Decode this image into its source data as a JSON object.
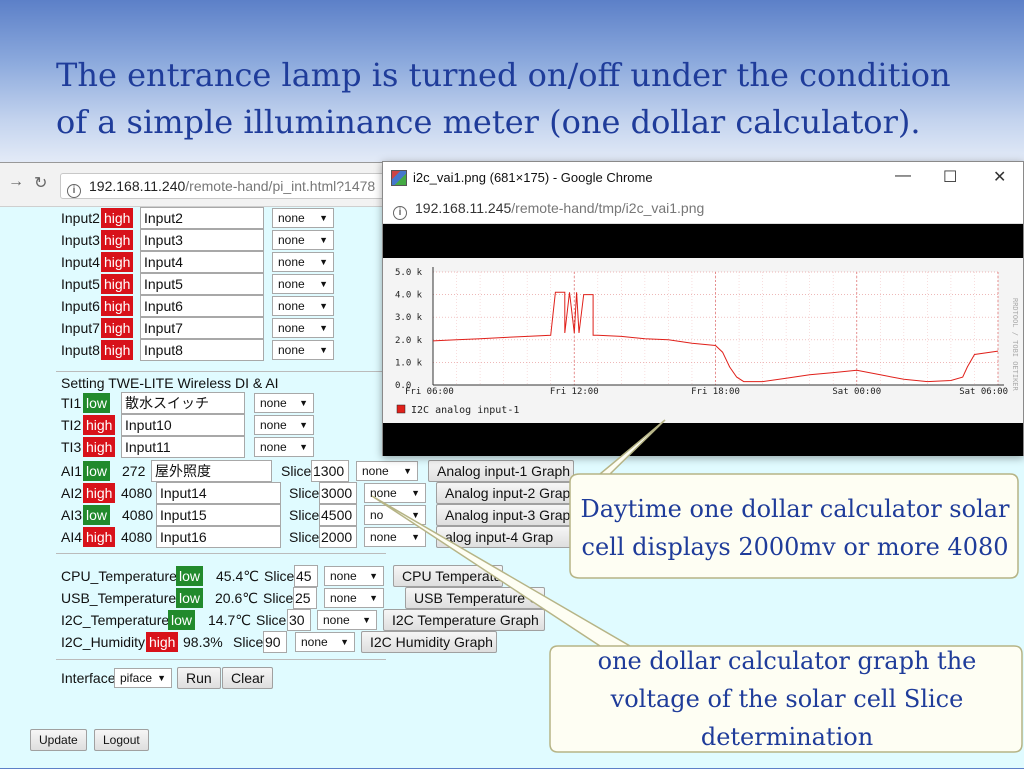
{
  "slide": {
    "title": "The entrance lamp is turned on/off under the condition of a simple illuminance meter (one dollar calculator)."
  },
  "main_browser": {
    "url_host": "192.168.11.240",
    "url_path": "/remote-hand/pi_int.html?1478",
    "inputs": [
      {
        "label": "Input2",
        "state": "high",
        "name": "Input2",
        "select": "none"
      },
      {
        "label": "Input3",
        "state": "high",
        "name": "Input3",
        "select": "none"
      },
      {
        "label": "Input4",
        "state": "high",
        "name": "Input4",
        "select": "none"
      },
      {
        "label": "Input5",
        "state": "high",
        "name": "Input5",
        "select": "none"
      },
      {
        "label": "Input6",
        "state": "high",
        "name": "Input6",
        "select": "none"
      },
      {
        "label": "Input7",
        "state": "high",
        "name": "Input7",
        "select": "none"
      },
      {
        "label": "Input8",
        "state": "high",
        "name": "Input8",
        "select": "none"
      }
    ],
    "twelite_heading": "Setting TWE-LITE Wireless DI & AI",
    "ti": [
      {
        "label": "TI1",
        "state": "low",
        "name": "散水スイッチ",
        "select": "none"
      },
      {
        "label": "TI2",
        "state": "high",
        "name": "Input10",
        "select": "none"
      },
      {
        "label": "TI3",
        "state": "high",
        "name": "Input11",
        "select": "none"
      }
    ],
    "ai": [
      {
        "label": "AI1",
        "state": "low",
        "value": "272",
        "name": "屋外照度",
        "slice_label": "Slice",
        "slice": "1300",
        "select": "none",
        "button": "Analog input-1 Graph"
      },
      {
        "label": "AI2",
        "state": "high",
        "value": "4080",
        "name": "Input14",
        "slice_label": "Slice",
        "slice": "3000",
        "select": "none",
        "button": "Analog input-2 Grap"
      },
      {
        "label": "AI3",
        "state": "low",
        "value": "4080",
        "name": "Input15",
        "slice_label": "Slice",
        "slice": "4500",
        "select": "no",
        "button": "Analog input-3 Grap"
      },
      {
        "label": "AI4",
        "state": "high",
        "value": "4080",
        "name": "Input16",
        "slice_label": "Slice",
        "slice": "2000",
        "select": "none",
        "button": "alog input-4 Grap"
      }
    ],
    "sensors": [
      {
        "label": "CPU_Temperature",
        "state": "low",
        "value": "45.4℃",
        "slice_label": "Slice",
        "slice": "45",
        "select": "none",
        "button": "CPU Temperatu"
      },
      {
        "label": "USB_Temperature",
        "state": "low",
        "value": "20.6℃",
        "slice_label": "Slice",
        "slice": "25",
        "select": "none",
        "button": "USB Temperature G"
      },
      {
        "label": "I2C_Temperature",
        "state": "low",
        "value": "14.7℃",
        "slice_label": "Slice",
        "slice": "30",
        "select": "none",
        "button": "I2C Temperature Graph"
      },
      {
        "label": "I2C_Humidity",
        "state": "high",
        "value": "98.3%",
        "slice_label": "Slice",
        "slice": "90",
        "select": "none",
        "button": "I2C Humidity Graph"
      }
    ],
    "interface_label": "Interface",
    "interface_value": "piface",
    "run_label": "Run",
    "clear_label": "Clear",
    "update_label": "Update",
    "logout_label": "Logout"
  },
  "popup": {
    "title": "i2c_vai1.png (681×175) - Google Chrome",
    "url_host": "192.168.11.245",
    "url_path": "/remote-hand/tmp/i2c_vai1.png",
    "side_text": "RRDTOOL / TOBI OETIKER"
  },
  "chart_data": {
    "type": "line",
    "title": "",
    "xlabel": "",
    "ylabel": "",
    "x_ticks": [
      "Fri 06:00",
      "Fri 12:00",
      "Fri 18:00",
      "Sat 00:00",
      "Sat 06:00"
    ],
    "y_ticks": [
      "0.0",
      "1.0 k",
      "2.0 k",
      "3.0 k",
      "4.0 k",
      "5.0 k"
    ],
    "ylim": [
      0,
      5000
    ],
    "xlim_hours": [
      0,
      24
    ],
    "grid": true,
    "legend_position": "bottom-left",
    "series": [
      {
        "name": "I2C analog input-1",
        "color": "#e0201a",
        "points": [
          [
            0,
            1950
          ],
          [
            1,
            2000
          ],
          [
            2,
            2050
          ],
          [
            3,
            2100
          ],
          [
            4,
            2150
          ],
          [
            5,
            2200
          ],
          [
            5.2,
            4100
          ],
          [
            5.6,
            4100
          ],
          [
            5.6,
            2300
          ],
          [
            5.8,
            4100
          ],
          [
            6.0,
            2300
          ],
          [
            6.1,
            4100
          ],
          [
            6.2,
            2300
          ],
          [
            6.4,
            4000
          ],
          [
            6.8,
            4000
          ],
          [
            6.8,
            2200
          ],
          [
            7.0,
            2200
          ],
          [
            8,
            2150
          ],
          [
            9,
            2050
          ],
          [
            10,
            2000
          ],
          [
            11,
            1850
          ],
          [
            12,
            1750
          ],
          [
            12.3,
            1450
          ],
          [
            12.6,
            800
          ],
          [
            12.9,
            350
          ],
          [
            13.2,
            150
          ],
          [
            14,
            150
          ],
          [
            15,
            300
          ],
          [
            16,
            450
          ],
          [
            17,
            550
          ],
          [
            18,
            650
          ],
          [
            19,
            450
          ],
          [
            20,
            250
          ],
          [
            21,
            150
          ],
          [
            22,
            200
          ],
          [
            22.5,
            350
          ],
          [
            22.7,
            800
          ],
          [
            23,
            1350
          ],
          [
            24,
            1500
          ]
        ]
      }
    ]
  },
  "callouts": {
    "top": "Daytime one dollar calculator solar cell displays 2000mv or more 4080",
    "bottom": "one dollar calculator graph the voltage of the solar cell Slice determination"
  }
}
